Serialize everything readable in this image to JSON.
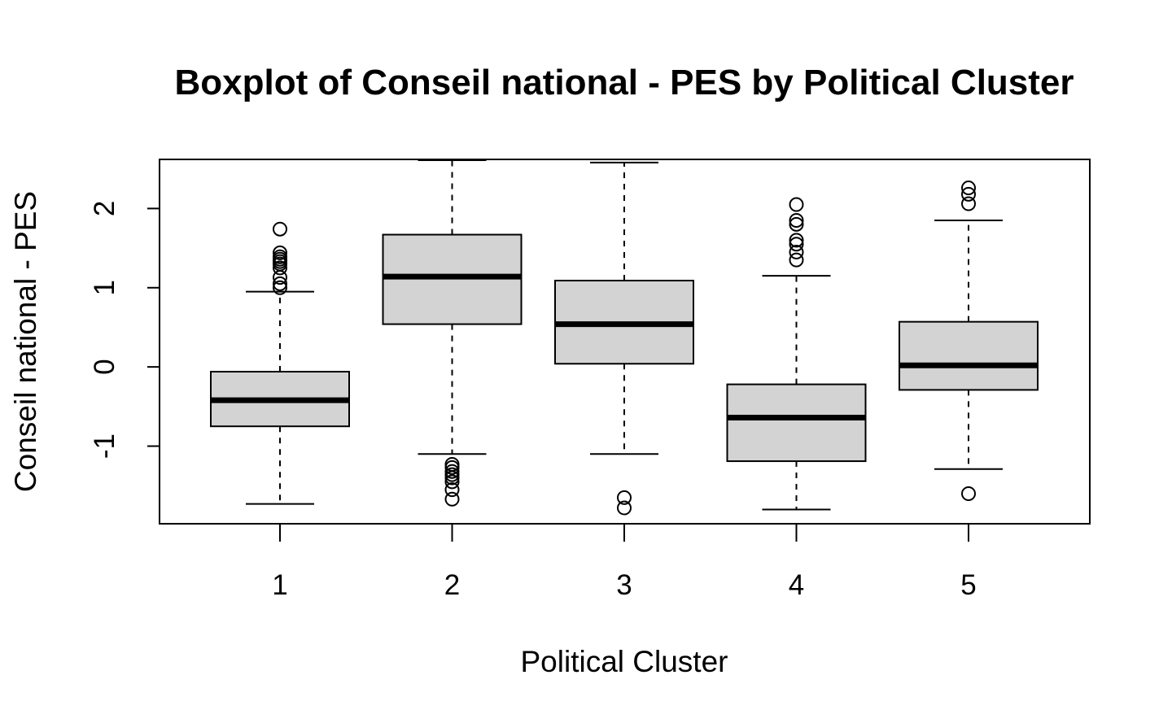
{
  "chart_data": {
    "type": "boxplot",
    "title": "Boxplot of Conseil national - PES by Political Cluster",
    "xlabel": "Political Cluster",
    "ylabel": "Conseil national - PES",
    "categories": [
      "1",
      "2",
      "3",
      "4",
      "5"
    ],
    "y_ticks": [
      -1,
      0,
      1,
      2
    ],
    "y_tick_labels": [
      "-1",
      "0",
      "1",
      "2"
    ],
    "ylim": [
      -1.98,
      2.62
    ],
    "grid": false,
    "legend": "none",
    "box_fill": "#d3d3d3",
    "line_color": "#000000",
    "boxes": [
      {
        "category": "1",
        "whisker_low": -1.73,
        "q1": -0.75,
        "median": -0.42,
        "q3": -0.06,
        "whisker_high": 0.95,
        "outliers": [
          1.74,
          1.44,
          1.39,
          1.36,
          1.33,
          1.3,
          1.25,
          1.13,
          1.05,
          1.0
        ]
      },
      {
        "category": "2",
        "whisker_low": -1.1,
        "q1": 0.54,
        "median": 1.14,
        "q3": 1.67,
        "whisker_high": 2.62,
        "outliers": [
          -1.23,
          -1.27,
          -1.32,
          -1.36,
          -1.4,
          -1.45,
          -1.55,
          -1.67
        ]
      },
      {
        "category": "3",
        "whisker_low": -1.1,
        "q1": 0.04,
        "median": 0.54,
        "q3": 1.09,
        "whisker_high": 2.58,
        "outliers": [
          -1.65,
          -1.78
        ]
      },
      {
        "category": "4",
        "whisker_low": -1.8,
        "q1": -1.19,
        "median": -0.64,
        "q3": -0.22,
        "whisker_high": 1.15,
        "outliers": [
          2.05,
          1.85,
          1.8,
          1.6,
          1.55,
          1.45,
          1.35
        ]
      },
      {
        "category": "5",
        "whisker_low": -1.29,
        "q1": -0.29,
        "median": 0.02,
        "q3": 0.57,
        "whisker_high": 1.85,
        "outliers": [
          2.26,
          2.18,
          2.06,
          -1.6
        ]
      }
    ]
  }
}
